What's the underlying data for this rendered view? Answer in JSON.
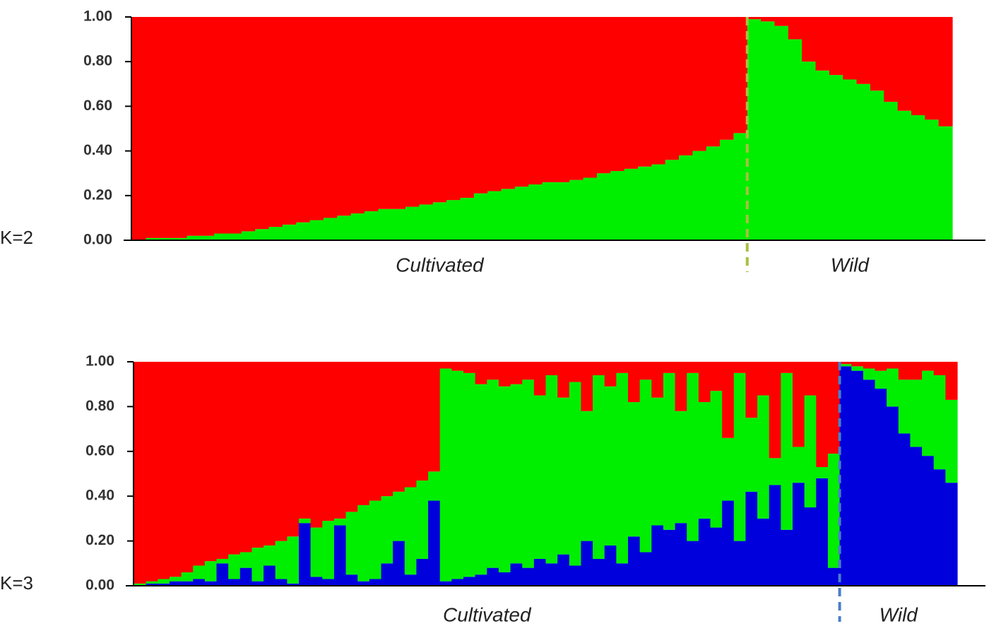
{
  "chart_data": [
    {
      "type": "structure",
      "label": "K=2",
      "ylim": [
        0,
        1
      ],
      "yticks": [
        {
          "value": 0,
          "label": "0.00"
        },
        {
          "value": 0.2,
          "label": "0.20"
        },
        {
          "value": 0.4,
          "label": "0.40"
        },
        {
          "value": 0.6,
          "label": "0.60"
        },
        {
          "value": 0.8,
          "label": "0.80"
        },
        {
          "value": 1,
          "label": "1.00"
        }
      ],
      "groups": [
        {
          "label": "Cultivated",
          "size": 45
        },
        {
          "label": "Wild",
          "size": 15
        }
      ],
      "divider_color": "#a8c040",
      "series": [
        {
          "color": "#00ee00",
          "values": [
            0.0,
            0.01,
            0.01,
            0.01,
            0.02,
            0.02,
            0.03,
            0.03,
            0.04,
            0.05,
            0.06,
            0.07,
            0.08,
            0.09,
            0.1,
            0.11,
            0.12,
            0.13,
            0.14,
            0.14,
            0.15,
            0.16,
            0.17,
            0.18,
            0.19,
            0.21,
            0.22,
            0.23,
            0.24,
            0.25,
            0.26,
            0.26,
            0.27,
            0.28,
            0.3,
            0.31,
            0.32,
            0.33,
            0.34,
            0.36,
            0.38,
            0.4,
            0.42,
            0.45,
            0.48,
            0.99,
            0.98,
            0.96,
            0.9,
            0.8,
            0.76,
            0.74,
            0.72,
            0.7,
            0.67,
            0.62,
            0.58,
            0.56,
            0.54,
            0.51
          ]
        },
        {
          "color": "#ff0000",
          "values": [
            1.0,
            0.99,
            0.99,
            0.99,
            0.98,
            0.98,
            0.97,
            0.97,
            0.96,
            0.95,
            0.94,
            0.93,
            0.92,
            0.91,
            0.9,
            0.89,
            0.88,
            0.87,
            0.86,
            0.86,
            0.85,
            0.84,
            0.83,
            0.82,
            0.81,
            0.79,
            0.78,
            0.77,
            0.76,
            0.75,
            0.74,
            0.74,
            0.73,
            0.72,
            0.7,
            0.69,
            0.68,
            0.67,
            0.66,
            0.64,
            0.62,
            0.6,
            0.58,
            0.55,
            0.52,
            0.01,
            0.02,
            0.04,
            0.1,
            0.2,
            0.24,
            0.26,
            0.28,
            0.3,
            0.33,
            0.38,
            0.42,
            0.44,
            0.46,
            0.49
          ]
        }
      ]
    },
    {
      "type": "structure",
      "label": "K=3",
      "ylim": [
        0,
        1
      ],
      "yticks": [
        {
          "value": 0,
          "label": "0.00"
        },
        {
          "value": 0.2,
          "label": "0.20"
        },
        {
          "value": 0.4,
          "label": "0.40"
        },
        {
          "value": 0.6,
          "label": "0.60"
        },
        {
          "value": 0.8,
          "label": "0.80"
        },
        {
          "value": 1,
          "label": "1.00"
        }
      ],
      "groups": [
        {
          "label": "Cultivated",
          "size": 60
        },
        {
          "label": "Wild",
          "size": 10
        }
      ],
      "divider_color": "#4a7ec8",
      "series": [
        {
          "color": "#0000dd",
          "values": [
            0.0,
            0.01,
            0.01,
            0.02,
            0.02,
            0.03,
            0.02,
            0.1,
            0.03,
            0.08,
            0.02,
            0.09,
            0.03,
            0.01,
            0.28,
            0.04,
            0.03,
            0.27,
            0.05,
            0.02,
            0.03,
            0.1,
            0.2,
            0.05,
            0.12,
            0.38,
            0.02,
            0.03,
            0.04,
            0.05,
            0.08,
            0.06,
            0.1,
            0.08,
            0.12,
            0.1,
            0.14,
            0.09,
            0.2,
            0.12,
            0.18,
            0.1,
            0.22,
            0.15,
            0.27,
            0.25,
            0.28,
            0.2,
            0.3,
            0.26,
            0.38,
            0.2,
            0.42,
            0.3,
            0.45,
            0.25,
            0.46,
            0.35,
            0.48,
            0.08,
            0.98,
            0.96,
            0.92,
            0.88,
            0.8,
            0.68,
            0.62,
            0.58,
            0.52,
            0.46
          ]
        },
        {
          "color": "#00ee00",
          "values": [
            0.01,
            0.01,
            0.02,
            0.02,
            0.04,
            0.06,
            0.09,
            0.02,
            0.11,
            0.07,
            0.15,
            0.09,
            0.17,
            0.21,
            0.02,
            0.22,
            0.26,
            0.03,
            0.28,
            0.34,
            0.35,
            0.3,
            0.22,
            0.39,
            0.35,
            0.13,
            0.95,
            0.93,
            0.91,
            0.85,
            0.84,
            0.83,
            0.8,
            0.84,
            0.73,
            0.84,
            0.7,
            0.82,
            0.58,
            0.82,
            0.71,
            0.85,
            0.6,
            0.77,
            0.57,
            0.7,
            0.5,
            0.75,
            0.52,
            0.61,
            0.28,
            0.75,
            0.33,
            0.55,
            0.12,
            0.7,
            0.16,
            0.5,
            0.05,
            0.51,
            0.01,
            0.02,
            0.05,
            0.08,
            0.17,
            0.24,
            0.3,
            0.38,
            0.42,
            0.37
          ]
        },
        {
          "color": "#ff0000",
          "values": [
            0.99,
            0.98,
            0.97,
            0.96,
            0.94,
            0.91,
            0.89,
            0.88,
            0.86,
            0.85,
            0.83,
            0.82,
            0.8,
            0.78,
            0.7,
            0.74,
            0.71,
            0.7,
            0.67,
            0.64,
            0.62,
            0.6,
            0.58,
            0.56,
            0.53,
            0.49,
            0.03,
            0.04,
            0.05,
            0.1,
            0.08,
            0.11,
            0.1,
            0.08,
            0.15,
            0.06,
            0.16,
            0.09,
            0.22,
            0.06,
            0.11,
            0.05,
            0.18,
            0.08,
            0.16,
            0.05,
            0.22,
            0.05,
            0.18,
            0.13,
            0.34,
            0.05,
            0.25,
            0.15,
            0.43,
            0.05,
            0.38,
            0.15,
            0.47,
            0.41,
            0.01,
            0.02,
            0.03,
            0.04,
            0.03,
            0.08,
            0.08,
            0.04,
            0.06,
            0.17
          ]
        }
      ]
    }
  ]
}
